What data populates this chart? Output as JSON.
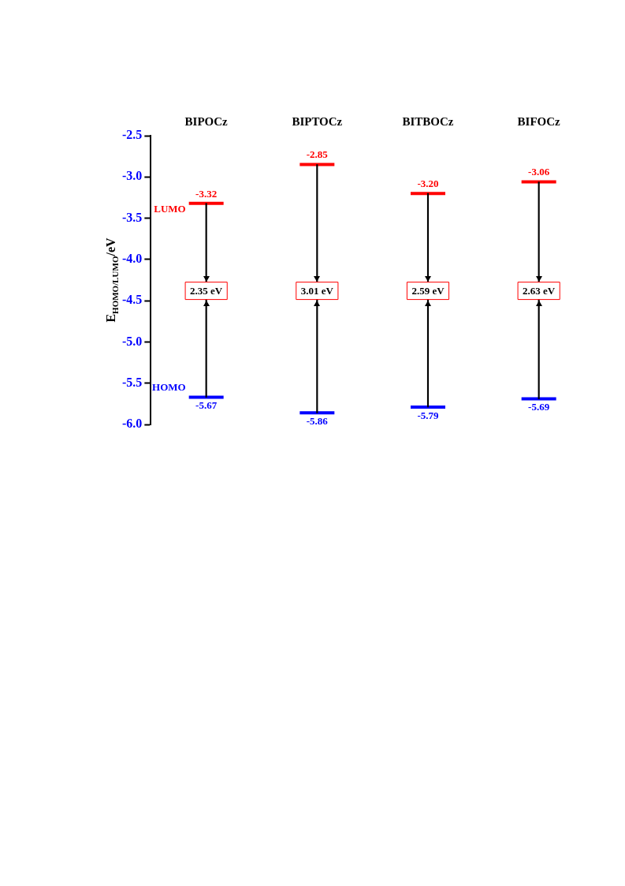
{
  "chart_data": {
    "type": "bar",
    "categories": [
      "BIPOCz",
      "BIPTOCz",
      "BITBOCz",
      "BIFOCz"
    ],
    "base": [
      -5.67,
      -5.86,
      -5.79,
      -5.69
    ],
    "values": [
      2.35,
      3.01,
      2.59,
      2.63
    ],
    "value_labels": [
      "2.35 eV",
      "3.01 eV",
      "2.59 eV",
      "2.63 eV"
    ],
    "color": "#000000",
    "ylabel": "E$_{HOMO/LUMO}$/eV",
    "ylim": [
      -6.0,
      -2.5
    ],
    "yticks": [
      {
        "value": -6,
        "label": "-6.0"
      },
      {
        "value": -5.5,
        "label": "-5.5"
      },
      {
        "value": -5,
        "label": "-5.0"
      },
      {
        "value": -4.5,
        "label": "-4.5"
      },
      {
        "value": -4,
        "label": "-4.0"
      },
      {
        "value": -3.5,
        "label": "-3.5"
      },
      {
        "value": -3,
        "label": "-3.0"
      },
      {
        "value": -2.5,
        "label": "-2.5"
      }
    ],
    "annotations": [
      "LUMO",
      "HOMO",
      {
        "text": "-3.32",
        "x": "BIPOCz",
        "y": -3.32
      },
      {
        "text": "-2.85",
        "x": "BIPTOCz",
        "y": -2.85
      },
      {
        "text": "-3.20",
        "x": "BITBOCz",
        "y": -3.2
      },
      {
        "text": "-3.06",
        "x": "BIFOCz",
        "y": -3.06
      },
      {
        "text": "-5.67",
        "x": "BIPOCz",
        "y": -5.67
      },
      {
        "text": "-5.86",
        "x": "BIPTOCz",
        "y": -5.86
      },
      {
        "text": "-5.79",
        "x": "BITBOCz",
        "y": -5.79
      },
      {
        "text": "-5.69",
        "x": "BIFOCz",
        "y": -5.69
      }
    ],
    "grid": false
  }
}
